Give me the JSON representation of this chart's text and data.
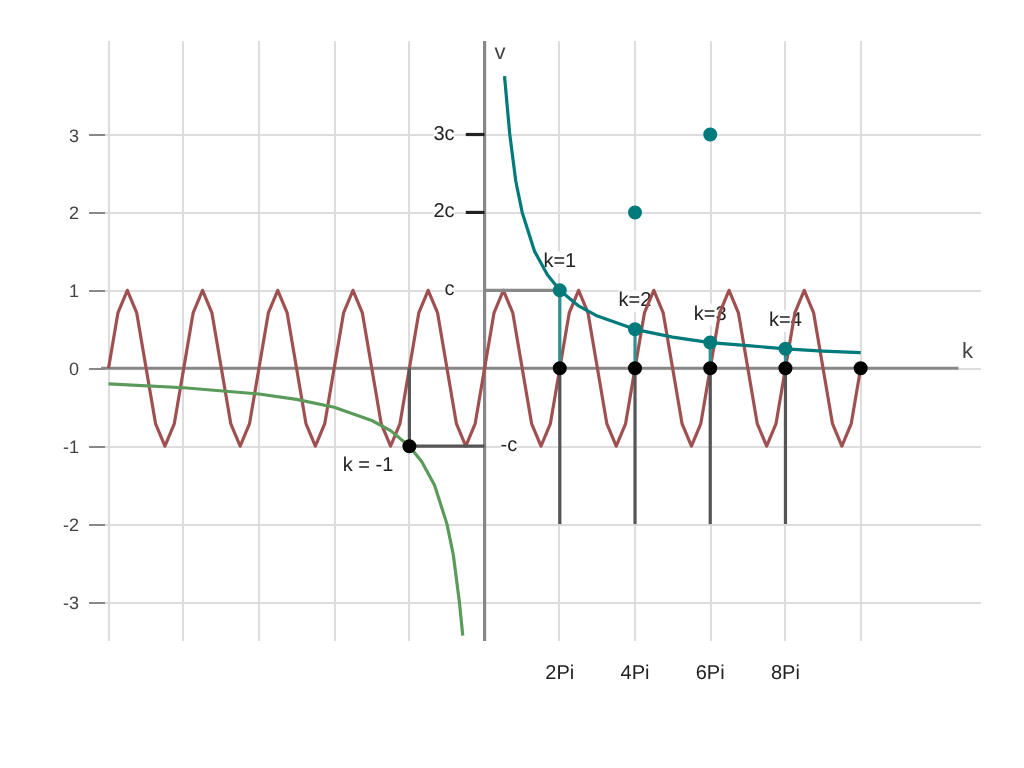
{
  "chart_data": {
    "type": "line",
    "xlabel": "k",
    "ylabel": "v",
    "xlim": [
      -10.2,
      13.2
    ],
    "ylim": [
      -3.5,
      4.2
    ],
    "xticks": [
      {
        "value": -10,
        "label": null
      },
      {
        "value": -8,
        "label": null
      },
      {
        "value": -6,
        "label": null
      },
      {
        "value": -4,
        "label": null
      },
      {
        "value": -2,
        "label": null
      },
      {
        "value": 0,
        "label": null
      },
      {
        "value": 2,
        "label": "2Pi"
      },
      {
        "value": 4,
        "label": "4Pi"
      },
      {
        "value": 6,
        "label": "6Pi"
      },
      {
        "value": 8,
        "label": "8Pi"
      },
      {
        "value": 10,
        "label": null
      }
    ],
    "yticks": [
      -3,
      -2,
      -1,
      0,
      1,
      2,
      3
    ],
    "grid": true,
    "series": [
      {
        "type": "line",
        "color": "#888888",
        "x": [
          -10.2,
          12.6
        ],
        "values": [
          0,
          0
        ]
      },
      {
        "type": "line",
        "color": "#888888",
        "x": [
          0,
          0
        ],
        "values": [
          -3.5,
          4.2
        ]
      },
      {
        "color": "#a05050",
        "x": [
          -10,
          -9.75,
          -9.5,
          -9.25,
          -9,
          -8.75,
          -8.5,
          -8.25,
          -8,
          -7.75,
          -7.5,
          -7.25,
          -7,
          -6.75,
          -6.5,
          -6.25,
          -6,
          -5.75,
          -5.5,
          -5.25,
          -5,
          -4.75,
          -4.5,
          -4.25,
          -4,
          -3.75,
          -3.5,
          -3.25,
          -3,
          -2.75,
          -2.5,
          -2.25,
          -2,
          -1.75,
          -1.5,
          -1.25,
          -1,
          -0.75,
          -0.5,
          -0.25,
          0,
          0.25,
          0.5,
          0.75,
          1,
          1.25,
          1.5,
          1.75,
          2,
          2.25,
          2.5,
          2.75,
          3,
          3.25,
          3.5,
          3.75,
          4,
          4.25,
          4.5,
          4.75,
          5,
          5.25,
          5.5,
          5.75,
          6,
          6.25,
          6.5,
          6.75,
          7,
          7.25,
          7.5,
          7.75,
          8,
          8.25,
          8.5,
          8.75,
          9,
          9.25,
          9.5,
          9.75,
          10
        ],
        "values": [
          0,
          0.71,
          1,
          0.71,
          0,
          -0.71,
          -1,
          -0.71,
          0,
          0.71,
          1,
          0.71,
          0,
          -0.71,
          -1,
          -0.71,
          0,
          0.71,
          1,
          0.71,
          0,
          -0.71,
          -1,
          -0.71,
          0,
          0.71,
          1,
          0.71,
          0,
          -0.71,
          -1,
          -0.71,
          0,
          0.71,
          1,
          0.71,
          0,
          -0.71,
          -1,
          -0.71,
          0,
          0.71,
          1,
          0.71,
          0,
          -0.71,
          -1,
          -0.71,
          0,
          0.71,
          1,
          0.71,
          0,
          -0.71,
          -1,
          -0.71,
          0,
          0.71,
          1,
          0.71,
          0,
          -0.71,
          -1,
          -0.71,
          0,
          0.71,
          1,
          0.71,
          0,
          -0.71,
          -1,
          -0.71,
          0,
          0.71,
          1,
          0.71,
          0,
          -0.71,
          -1,
          -0.71,
          0
        ]
      },
      {
        "color": "#5a9a5a",
        "x": [
          -10,
          -8,
          -6,
          -5,
          -4,
          -3,
          -2.5,
          -2,
          -1.67,
          -1.33,
          -1,
          -0.83,
          -0.67,
          -0.58
        ],
        "values": [
          -0.2,
          -0.25,
          -0.33,
          -0.4,
          -0.5,
          -0.67,
          -0.8,
          -1,
          -1.2,
          -1.5,
          -2,
          -2.4,
          -3,
          -3.43
        ]
      },
      {
        "type": "line",
        "color": "#555555",
        "x": [
          -2,
          -2,
          0
        ],
        "values": [
          0,
          -1,
          -1
        ]
      },
      {
        "type": "line",
        "color": "#888888",
        "x": [
          0,
          2
        ],
        "values": [
          1,
          1
        ]
      },
      {
        "type": "line",
        "color": "#222222",
        "x": [
          -0.5,
          0
        ],
        "values": [
          2,
          2
        ]
      },
      {
        "type": "line",
        "color": "#222222",
        "x": [
          -0.5,
          0
        ],
        "values": [
          3,
          3
        ]
      },
      {
        "type": "line",
        "color": "#555555",
        "x": [
          2,
          2
        ],
        "values": [
          -2,
          0
        ]
      },
      {
        "type": "line",
        "color": "#555555",
        "x": [
          4,
          4
        ],
        "values": [
          -2,
          0
        ]
      },
      {
        "type": "line",
        "color": "#555555",
        "x": [
          6,
          6
        ],
        "values": [
          -2,
          0
        ]
      },
      {
        "type": "line",
        "color": "#555555",
        "x": [
          8,
          8
        ],
        "values": [
          -2,
          0
        ]
      },
      {
        "type": "line",
        "color": "#2e9090",
        "x": [
          2,
          2
        ],
        "values": [
          0,
          1
        ]
      },
      {
        "type": "line",
        "color": "#2e9090",
        "x": [
          4,
          4
        ],
        "values": [
          0,
          0.5
        ]
      },
      {
        "type": "line",
        "color": "#2e9090",
        "x": [
          6,
          6
        ],
        "values": [
          0,
          0.33
        ]
      },
      {
        "type": "line",
        "color": "#2e9090",
        "x": [
          8,
          8
        ],
        "values": [
          0,
          0.25
        ]
      },
      {
        "color": "#007a7a",
        "x": [
          0.53,
          0.67,
          0.83,
          1,
          1.33,
          1.67,
          2,
          2.5,
          3,
          4,
          5,
          6,
          7,
          8,
          9,
          10
        ],
        "values": [
          3.75,
          3,
          2.4,
          2,
          1.5,
          1.2,
          1,
          0.8,
          0.67,
          0.5,
          0.4,
          0.33,
          0.29,
          0.25,
          0.22,
          0.2
        ]
      },
      {
        "type": "scatter",
        "marker": "circle",
        "color": "#007a7a",
        "x": [
          2,
          4,
          6,
          8,
          4,
          6
        ],
        "values": [
          1,
          0.5,
          0.33,
          0.25,
          2,
          3
        ]
      },
      {
        "type": "scatter",
        "marker": "circle",
        "color": "#000000",
        "x": [
          -2,
          2,
          4,
          6,
          8,
          10
        ],
        "values": [
          -1,
          0,
          0,
          0,
          0,
          0
        ]
      }
    ],
    "annotations": [
      {
        "text": "c",
        "x": 0,
        "y": 1
      },
      {
        "text": "2c",
        "x": 0,
        "y": 2
      },
      {
        "text": "3c",
        "x": 0,
        "y": 3
      },
      {
        "text": "-c",
        "x": 0,
        "y": -1
      },
      {
        "text": "k=1",
        "x": 2,
        "y": 1
      },
      {
        "text": "k=2",
        "x": 4,
        "y": 0.5
      },
      {
        "text": "k=3",
        "x": 6,
        "y": 0.33
      },
      {
        "text": "k=4",
        "x": 8,
        "y": 0.25
      },
      {
        "text": "k = -1",
        "x": -2,
        "y": -1
      }
    ]
  }
}
